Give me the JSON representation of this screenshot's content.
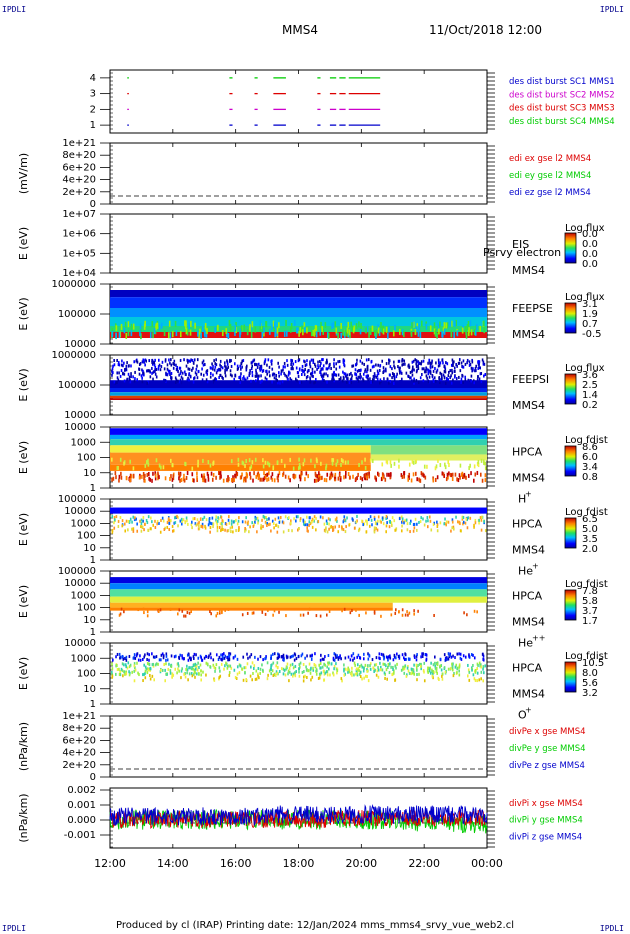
{
  "corner_label": "IPDLI",
  "header": {
    "mission": "MMS4",
    "datetime": "11/Oct/2018 12:00"
  },
  "footer": "Produced by cl (IRAP)   Printing date: 12/Jan/2024   mms_mms4_srvy_vue_web2.cl",
  "colors": {
    "red": "#dd0000",
    "green": "#00cc00",
    "blue": "#0000cc",
    "magenta": "#cc00cc"
  },
  "chart_data": [
    {
      "type": "scatter",
      "id": "burst",
      "ylim": [
        0.5,
        4.3
      ],
      "ticks": [
        "4",
        "3",
        "2",
        "1"
      ],
      "legend": [
        {
          "text": "des dist burst SC1 MMS1",
          "color": "#0000cc"
        },
        {
          "text": "des dist burst SC2 MMS2",
          "color": "#cc00cc"
        },
        {
          "text": "des dist burst SC3 MMS3",
          "color": "#dd0000"
        },
        {
          "text": "des dist burst SC4 MMS4",
          "color": "#00cc00"
        }
      ],
      "series": [
        {
          "name": "SC4",
          "y": 4,
          "intervals": [
            [
              12.55,
              12.6
            ],
            [
              15.8,
              15.9
            ],
            [
              16.6,
              16.7
            ],
            [
              17.2,
              17.6
            ],
            [
              18.6,
              18.7
            ],
            [
              19.0,
              19.2
            ],
            [
              19.3,
              19.5
            ],
            [
              19.6,
              20.6
            ]
          ]
        },
        {
          "name": "SC3",
          "y": 3,
          "intervals": [
            [
              12.55,
              12.6
            ],
            [
              15.8,
              15.9
            ],
            [
              16.6,
              16.7
            ],
            [
              17.2,
              17.6
            ],
            [
              18.6,
              18.7
            ],
            [
              19.0,
              19.2
            ],
            [
              19.3,
              19.5
            ],
            [
              19.6,
              20.6
            ]
          ]
        },
        {
          "name": "SC2",
          "y": 2,
          "intervals": [
            [
              12.55,
              12.6
            ],
            [
              15.8,
              15.9
            ],
            [
              16.6,
              16.7
            ],
            [
              17.2,
              17.6
            ],
            [
              18.6,
              18.7
            ],
            [
              19.0,
              19.2
            ],
            [
              19.3,
              19.5
            ],
            [
              19.6,
              20.6
            ]
          ]
        },
        {
          "name": "SC1",
          "y": 1,
          "intervals": [
            [
              12.55,
              12.6
            ],
            [
              15.8,
              15.9
            ],
            [
              16.6,
              16.7
            ],
            [
              17.2,
              17.6
            ],
            [
              18.6,
              18.7
            ],
            [
              19.0,
              19.2
            ],
            [
              19.3,
              19.5
            ],
            [
              19.6,
              20.6
            ]
          ]
        }
      ]
    },
    {
      "type": "line",
      "id": "edi",
      "ylabel": "(mV/m)",
      "ticks": [
        "1e+21",
        "8e+20",
        "6e+20",
        "4e+20",
        "2e+20",
        "0"
      ],
      "legend": [
        {
          "text": "edi ex gse l2 MMS4",
          "color": "#dd0000"
        },
        {
          "text": "edi ey gse l2 MMS4",
          "color": "#00cc00"
        },
        {
          "text": "edi ez gse l2 MMS4",
          "color": "#0000cc"
        }
      ]
    },
    {
      "type": "heatmap",
      "id": "eis",
      "ylabel": "E (eV)",
      "ticks": [
        "1e+07",
        "1e+06",
        "1e+05",
        "1e+04"
      ],
      "right": [
        "EIS",
        "MMS4"
      ],
      "overlap": "Psrvy electron to",
      "cbar_title": "Log flux",
      "cbar": [
        "0.0",
        "0.0",
        "0.0",
        "0.0"
      ]
    },
    {
      "type": "heatmap",
      "id": "feepse",
      "ylabel": "E (eV)",
      "ticks": [
        "1000000",
        "100000",
        "10000"
      ],
      "right": [
        "FEEPSE",
        "MMS4"
      ],
      "cbar_title": "Log flux",
      "cbar": [
        "3.1",
        "1.9",
        "0.7",
        "-0.5"
      ]
    },
    {
      "type": "heatmap",
      "id": "feepsi",
      "ylabel": "E (eV)",
      "ticks": [
        "1000000",
        "100000",
        "10000"
      ],
      "right": [
        "FEEPSI",
        "MMS4"
      ],
      "cbar_title": "Log flux",
      "cbar": [
        "3.6",
        "2.5",
        "1.4",
        "0.2"
      ]
    },
    {
      "type": "heatmap",
      "id": "hpca_h",
      "ylabel": "E (eV)",
      "ticks": [
        "10000",
        "1000",
        "100",
        "10",
        "1"
      ],
      "right": [
        "HPCA",
        "MMS4"
      ],
      "species": "H",
      "sup": "+",
      "cbar_title": "Log fdist",
      "cbar": [
        "8.6",
        "6.0",
        "3.4",
        "0.8"
      ]
    },
    {
      "type": "heatmap",
      "id": "hpca_he",
      "ylabel": "E (eV)",
      "ticks": [
        "100000",
        "10000",
        "1000",
        "100",
        "10",
        "1"
      ],
      "right": [
        "HPCA",
        "MMS4"
      ],
      "species": "He",
      "sup": "+",
      "cbar_title": "Log fdist",
      "cbar": [
        "6.5",
        "5.0",
        "3.5",
        "2.0"
      ]
    },
    {
      "type": "heatmap",
      "id": "hpca_hepp",
      "ylabel": "E (eV)",
      "ticks": [
        "100000",
        "10000",
        "1000",
        "100",
        "10",
        "1"
      ],
      "right": [
        "HPCA",
        "MMS4"
      ],
      "species": "He",
      "sup": "++",
      "cbar_title": "Log fdist",
      "cbar": [
        "7.8",
        "5.8",
        "3.7",
        "1.7"
      ]
    },
    {
      "type": "heatmap",
      "id": "hpca_o",
      "ylabel": "E (eV)",
      "ticks": [
        "10000",
        "1000",
        "100",
        "10",
        "1"
      ],
      "right": [
        "HPCA",
        "MMS4"
      ],
      "species": "O",
      "sup": "+",
      "cbar_title": "Log fdist",
      "cbar": [
        "10.5",
        "8.0",
        "5.6",
        "3.2"
      ]
    },
    {
      "type": "line",
      "id": "divpe",
      "ylabel": "(nPa/km)",
      "ticks": [
        "1e+21",
        "8e+20",
        "6e+20",
        "4e+20",
        "2e+20",
        "0"
      ],
      "legend": [
        {
          "text": "divPe x gse MMS4",
          "color": "#dd0000"
        },
        {
          "text": "divPe y gse MMS4",
          "color": "#00cc00"
        },
        {
          "text": "divPe z gse MMS4",
          "color": "#0000cc"
        }
      ]
    },
    {
      "type": "line",
      "id": "divpi",
      "ylabel": "(nPa/km)",
      "ticks": [
        "0.002",
        "0.001",
        "0.000",
        "-0.001"
      ],
      "ylim": [
        -0.0015,
        0.0021
      ],
      "legend": [
        {
          "text": "divPi x gse MMS4",
          "color": "#dd0000"
        },
        {
          "text": "divPi y gse MMS4",
          "color": "#00cc00"
        },
        {
          "text": "divPi z gse MMS4",
          "color": "#0000cc"
        }
      ],
      "xlim": [
        12,
        24
      ],
      "xticks": [
        "12:00",
        "14:00",
        "16:00",
        "18:00",
        "20:00",
        "22:00",
        "00:00"
      ]
    }
  ]
}
